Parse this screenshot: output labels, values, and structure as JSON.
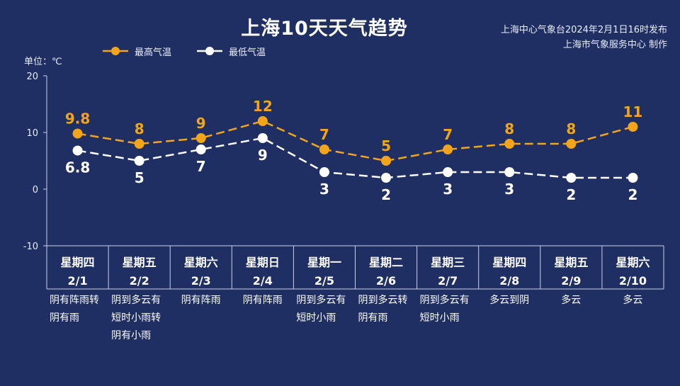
{
  "title": "上海10天天气趋势",
  "credit_line1": "上海中心气象台2024年2月1日16时发布",
  "credit_line2": "上海市气象服务中心 制作",
  "unit": "单位：℃",
  "colors": {
    "high": "#f2a51a",
    "low": "#ffffff",
    "background": "#1f2f63",
    "axis": "#c9d0e6"
  },
  "chart_data": {
    "type": "line",
    "title": "上海10天天气趋势",
    "ylabel": "单位：℃",
    "ylim": [
      -10,
      20
    ],
    "yticks": [
      "20",
      "10",
      "0",
      "-10"
    ],
    "legend_position": "top-left",
    "grid": false,
    "categories": [
      "2/1",
      "2/2",
      "2/3",
      "2/4",
      "2/5",
      "2/6",
      "2/7",
      "2/8",
      "2/9",
      "2/10"
    ],
    "weekdays": [
      "星期四",
      "星期五",
      "星期六",
      "星期日",
      "星期一",
      "星期二",
      "星期三",
      "星期四",
      "星期五",
      "星期六"
    ],
    "series": [
      {
        "name": "最高气温",
        "values": [
          9.8,
          8,
          9,
          12,
          7,
          5,
          7,
          8,
          8,
          11
        ],
        "labels": [
          "9.8",
          "8",
          "9",
          "12",
          "7",
          "5",
          "7",
          "8",
          "8",
          "11"
        ]
      },
      {
        "name": "最低气温",
        "values": [
          6.8,
          5,
          7,
          9,
          3,
          2,
          3,
          3,
          2,
          2
        ],
        "labels": [
          "6.8",
          "5",
          "7",
          "9",
          "3",
          "2",
          "3",
          "3",
          "2",
          "2"
        ]
      }
    ],
    "weather": [
      [
        "阴有阵雨转",
        "阴有雨"
      ],
      [
        "阴到多云有",
        "短时小雨转",
        "阴有小雨"
      ],
      [
        "阴有阵雨"
      ],
      [
        "阴有阵雨"
      ],
      [
        "阴到多云有",
        "短时小雨"
      ],
      [
        "阴到多云转",
        "阴有雨"
      ],
      [
        "阴到多云有",
        "短时小雨"
      ],
      [
        "多云到阴"
      ],
      [
        "多云"
      ],
      [
        "多云"
      ]
    ]
  }
}
